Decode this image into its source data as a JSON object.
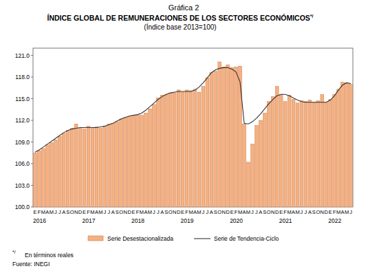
{
  "chart_data": {
    "type": "bar",
    "caption": "Gráfica 2",
    "title": "ÍNDICE GLOBAL DE REMUNERACIONES DE LOS SECTORES ECONÓMICOS",
    "note_mark": "*/",
    "subtitle": "(Índice base 2013=100)",
    "note": "En términos reales",
    "source": "Fuente: INEGI",
    "categories": [
      "E",
      "F",
      "M",
      "A",
      "M",
      "J",
      "J",
      "A",
      "S",
      "O",
      "N",
      "D",
      "E",
      "F",
      "M",
      "A",
      "M",
      "J",
      "J",
      "A",
      "S",
      "O",
      "N",
      "D",
      "E",
      "F",
      "M",
      "A",
      "M",
      "J",
      "J",
      "A",
      "S",
      "O",
      "N",
      "D",
      "E",
      "F",
      "M",
      "A",
      "M",
      "J",
      "J",
      "A",
      "S",
      "O",
      "N",
      "D",
      "E",
      "F",
      "M",
      "A",
      "M",
      "J",
      "J",
      "A",
      "S",
      "O",
      "N",
      "D",
      "E",
      "F",
      "M",
      "A",
      "M",
      "J",
      "J",
      "A",
      "S",
      "O",
      "N",
      "D",
      "E",
      "F",
      "M",
      "A",
      "M",
      "J"
    ],
    "years": [
      2016,
      2017,
      2018,
      2019,
      2020,
      2021,
      2022
    ],
    "series": [
      {
        "name": "Serie Desestacionalizada",
        "type": "bar",
        "color": "#f4b183",
        "values": [
          107.5,
          107.8,
          108.1,
          108.6,
          108.9,
          109.3,
          109.8,
          110.2,
          110.6,
          110.9,
          111.5,
          110.9,
          110.8,
          111.2,
          111.0,
          111.1,
          110.9,
          111.2,
          111.5,
          111.6,
          111.8,
          112.2,
          112.4,
          112.5,
          112.6,
          112.7,
          112.7,
          113.0,
          113.6,
          114.2,
          115.1,
          115.5,
          115.6,
          115.8,
          115.8,
          116.2,
          115.9,
          116.2,
          116.1,
          116.3,
          115.9,
          116.7,
          117.9,
          118.6,
          118.8,
          120.1,
          119.4,
          119.7,
          119.3,
          119.4,
          119.5,
          111.5,
          106.2,
          108.7,
          111.3,
          112.0,
          113.0,
          114.6,
          115.3,
          116.7,
          115.6,
          114.6,
          115.5,
          114.9,
          114.4,
          114.7,
          114.6,
          114.8,
          114.5,
          114.7,
          115.6,
          114.5,
          114.9,
          115.6,
          116.3,
          117.3,
          117.2,
          117.0
        ]
      },
      {
        "name": "Serie de Tendencia-Ciclo",
        "type": "line",
        "color": "#333333",
        "line_style": "solid",
        "values": [
          107.6,
          107.9,
          108.3,
          108.7,
          109.1,
          109.5,
          109.9,
          110.3,
          110.6,
          110.8,
          110.9,
          111.0,
          111.0,
          111.0,
          111.0,
          111.0,
          111.1,
          111.2,
          111.4,
          111.6,
          111.9,
          112.2,
          112.4,
          112.6,
          112.7,
          112.8,
          113.0,
          113.4,
          113.9,
          114.4,
          114.9,
          115.3,
          115.6,
          115.8,
          115.9,
          116.0,
          116.0,
          116.0,
          116.0,
          116.2,
          116.6,
          117.2,
          117.9,
          118.6,
          119.0,
          119.2,
          119.3,
          119.3,
          119.1,
          118.7,
          117.3,
          111.6,
          111.5,
          111.8,
          112.3,
          112.9,
          113.6,
          114.3,
          114.9,
          115.4,
          115.6,
          115.6,
          115.4,
          115.1,
          114.8,
          114.6,
          114.5,
          114.5,
          114.5,
          114.5,
          114.5,
          114.5,
          114.8,
          115.4,
          116.2,
          116.9,
          117.2,
          117.1
        ]
      }
    ],
    "ylim": [
      100,
      122
    ],
    "yticks": [
      {
        "value": 100,
        "label": "100.0"
      },
      {
        "value": 103,
        "label": "103.0"
      },
      {
        "value": 106,
        "label": "106.0"
      },
      {
        "value": 109,
        "label": "109.0"
      },
      {
        "value": 112,
        "label": "112.0"
      },
      {
        "value": 115,
        "label": "115.0"
      },
      {
        "value": 118,
        "label": "118.0"
      },
      {
        "value": 121,
        "label": "121.0"
      }
    ],
    "grid": false,
    "legend": "bottom"
  }
}
